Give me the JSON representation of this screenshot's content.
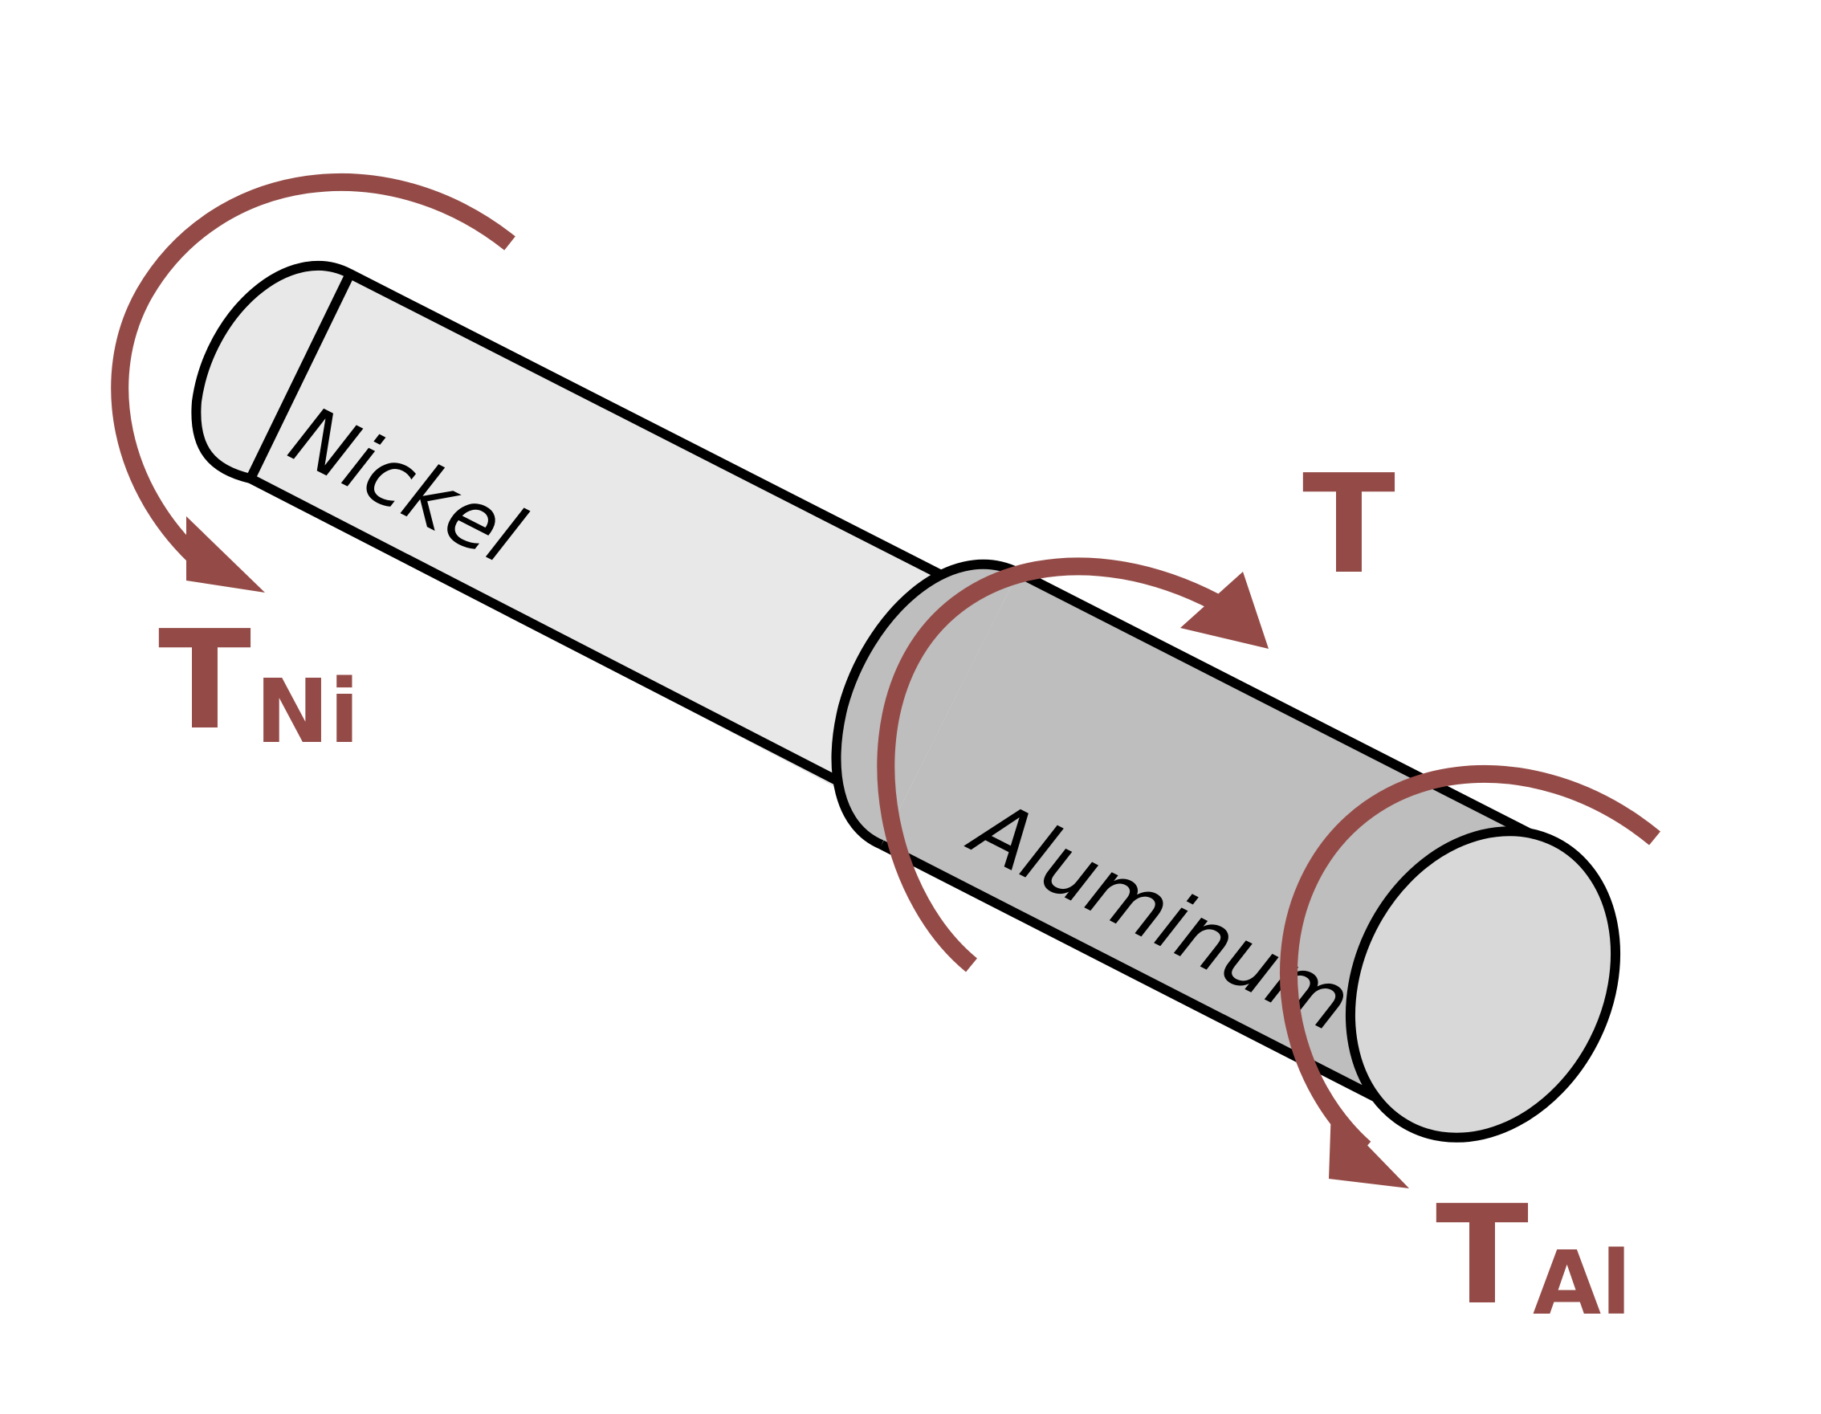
{
  "materials": {
    "nickel": "Nickel",
    "aluminum": "Aluminum"
  },
  "torques": {
    "applied": {
      "symbol": "T",
      "subscript": ""
    },
    "nickel_end": {
      "symbol": "T",
      "subscript": "Ni"
    },
    "aluminum_end": {
      "symbol": "T",
      "subscript": "Al"
    }
  },
  "colors": {
    "torque": "#944b47",
    "nickel_fill": "#e8e8e8",
    "aluminum_fill": "#bebebe",
    "end_cap_fill": "#d8d8d8",
    "outline": "#000000"
  }
}
